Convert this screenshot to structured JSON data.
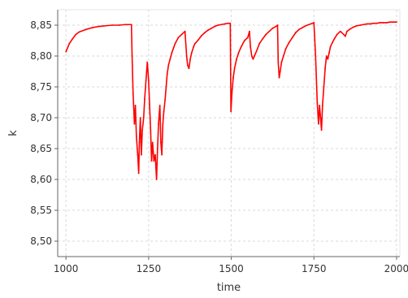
{
  "chart_data": {
    "type": "line",
    "xlabel": "time",
    "ylabel": "k",
    "xlim": [
      975,
      2010
    ],
    "ylim": [
      8.475,
      8.875
    ],
    "x_ticks": [
      1000,
      1250,
      1500,
      1750,
      2000
    ],
    "x_tick_labels": [
      "1000",
      "1250",
      "1500",
      "1750",
      "2000"
    ],
    "y_ticks": [
      8.5,
      8.55,
      8.6,
      8.65,
      8.7,
      8.75,
      8.8,
      8.85
    ],
    "y_tick_labels": [
      "8,50",
      "8,55",
      "8,60",
      "8,65",
      "8,70",
      "8,75",
      "8,80",
      "8,85"
    ],
    "grid": true,
    "legend": "none",
    "colors": {
      "series": "#ff0000",
      "grid": "#d8d8d8",
      "axis": "#666666",
      "background": "#ffffff"
    },
    "series": [
      {
        "color": "#ff0000",
        "x": [
          1000,
          1010,
          1020,
          1030,
          1040,
          1060,
          1080,
          1100,
          1120,
          1140,
          1160,
          1180,
          1198,
          1200,
          1203,
          1207,
          1210,
          1213,
          1217,
          1220,
          1222,
          1225,
          1228,
          1231,
          1235,
          1238,
          1242,
          1246,
          1250,
          1253,
          1256,
          1259,
          1262,
          1266,
          1270,
          1274,
          1277,
          1280,
          1284,
          1287,
          1290,
          1293,
          1296,
          1300,
          1303,
          1306,
          1310,
          1315,
          1320,
          1330,
          1340,
          1350,
          1360,
          1365,
          1368,
          1372,
          1376,
          1380,
          1386,
          1390,
          1400,
          1410,
          1420,
          1430,
          1440,
          1450,
          1460,
          1470,
          1480,
          1490,
          1497,
          1499,
          1502,
          1506,
          1510,
          1516,
          1522,
          1530,
          1540,
          1550,
          1555,
          1558,
          1562,
          1566,
          1570,
          1578,
          1585,
          1595,
          1605,
          1615,
          1625,
          1635,
          1640,
          1642,
          1645,
          1648,
          1652,
          1658,
          1665,
          1675,
          1685,
          1695,
          1705,
          1715,
          1725,
          1735,
          1745,
          1750,
          1755,
          1760,
          1764,
          1767,
          1770,
          1773,
          1776,
          1780,
          1784,
          1788,
          1792,
          1796,
          1800,
          1806,
          1812,
          1820,
          1830,
          1840,
          1845,
          1850,
          1860,
          1870,
          1880,
          1890,
          1900,
          1910,
          1920,
          1930,
          1940,
          1950,
          1960,
          1970,
          1980,
          1990,
          2000
        ],
        "y": [
          8.807,
          8.82,
          8.828,
          8.835,
          8.839,
          8.843,
          8.846,
          8.848,
          8.849,
          8.85,
          8.85,
          8.851,
          8.851,
          8.8,
          8.74,
          8.69,
          8.72,
          8.67,
          8.64,
          8.61,
          8.66,
          8.7,
          8.64,
          8.68,
          8.7,
          8.73,
          8.76,
          8.79,
          8.76,
          8.72,
          8.68,
          8.63,
          8.66,
          8.63,
          8.64,
          8.6,
          8.65,
          8.69,
          8.72,
          8.66,
          8.64,
          8.69,
          8.71,
          8.73,
          8.75,
          8.77,
          8.785,
          8.795,
          8.805,
          8.82,
          8.83,
          8.835,
          8.84,
          8.8,
          8.785,
          8.78,
          8.795,
          8.805,
          8.815,
          8.82,
          8.826,
          8.833,
          8.838,
          8.842,
          8.845,
          8.848,
          8.85,
          8.851,
          8.852,
          8.853,
          8.853,
          8.71,
          8.74,
          8.765,
          8.78,
          8.795,
          8.805,
          8.815,
          8.825,
          8.83,
          8.84,
          8.815,
          8.8,
          8.795,
          8.8,
          8.81,
          8.82,
          8.828,
          8.835,
          8.84,
          8.845,
          8.848,
          8.85,
          8.79,
          8.765,
          8.775,
          8.79,
          8.8,
          8.812,
          8.822,
          8.83,
          8.838,
          8.843,
          8.846,
          8.849,
          8.851,
          8.853,
          8.854,
          8.8,
          8.725,
          8.69,
          8.72,
          8.7,
          8.68,
          8.72,
          8.75,
          8.78,
          8.8,
          8.795,
          8.805,
          8.815,
          8.822,
          8.828,
          8.835,
          8.84,
          8.835,
          8.832,
          8.84,
          8.844,
          8.847,
          8.849,
          8.85,
          8.851,
          8.852,
          8.852,
          8.853,
          8.853,
          8.854,
          8.854,
          8.854,
          8.855,
          8.855,
          8.855
        ]
      }
    ]
  }
}
